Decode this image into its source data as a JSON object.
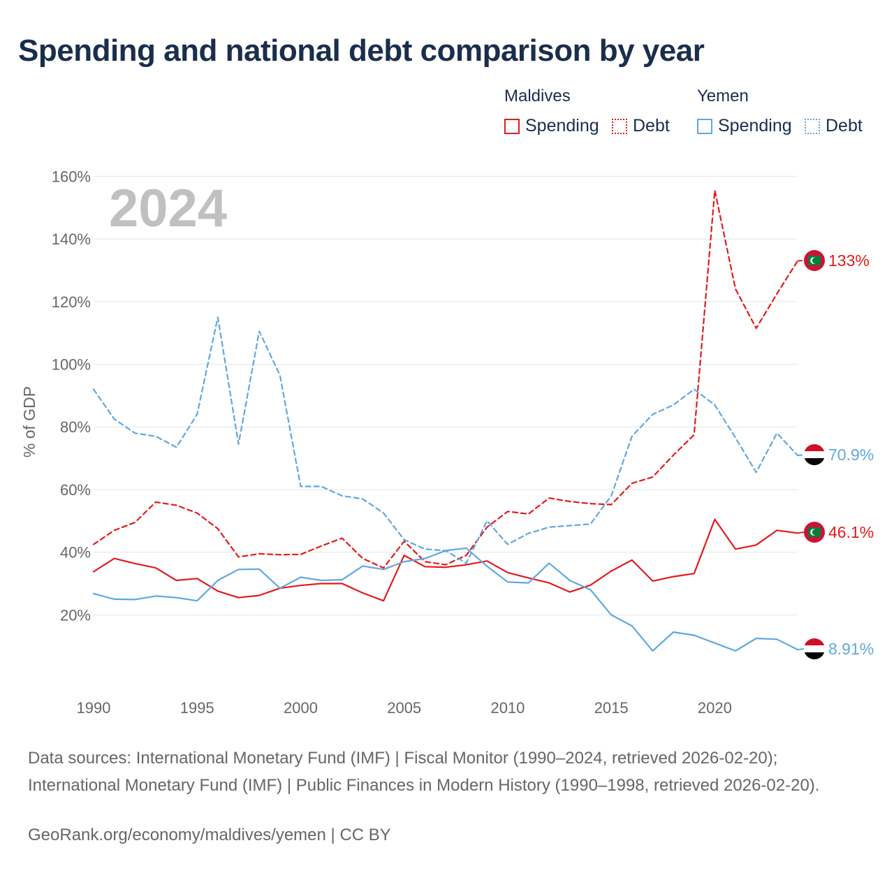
{
  "title": "Spending and national debt comparison by year",
  "legend": {
    "groups": [
      {
        "country": "Maldives",
        "color": "#e31a1c",
        "items": [
          {
            "label": "Spending",
            "style": "solid"
          },
          {
            "label": "Debt",
            "style": "dotted"
          }
        ]
      },
      {
        "country": "Yemen",
        "color": "#5fa8e0",
        "items": [
          {
            "label": "Spending",
            "style": "solid"
          },
          {
            "label": "Debt",
            "style": "dotted"
          }
        ]
      }
    ]
  },
  "chart_data": {
    "type": "line",
    "ylabel": "% of GDP",
    "ylim": [
      -4,
      165
    ],
    "xlim": [
      1990,
      2024
    ],
    "yticks": [
      20,
      40,
      60,
      80,
      100,
      120,
      140,
      160
    ],
    "ytick_labels": [
      "20%",
      "40%",
      "60%",
      "80%",
      "100%",
      "120%",
      "140%",
      "160%"
    ],
    "xticks": [
      1990,
      1995,
      2000,
      2005,
      2010,
      2015,
      2020
    ],
    "xtick_labels": [
      "1990",
      "1995",
      "2000",
      "2005",
      "2010",
      "2015",
      "2020"
    ],
    "year_label": "2024",
    "grid": true,
    "x": [
      1990,
      1991,
      1992,
      1993,
      1994,
      1995,
      1996,
      1997,
      1998,
      1999,
      2000,
      2001,
      2002,
      2003,
      2004,
      2005,
      2006,
      2007,
      2008,
      2009,
      2010,
      2011,
      2012,
      2013,
      2014,
      2015,
      2016,
      2017,
      2018,
      2019,
      2020,
      2021,
      2022,
      2023,
      2024
    ],
    "series": [
      {
        "name": "Maldives Spending",
        "country": "Maldives",
        "color": "#e31a1c",
        "dash": "",
        "end_label": "46.1%",
        "values": [
          33.8,
          38,
          36.4,
          35,
          31,
          31.6,
          27.6,
          25.5,
          26.2,
          28.5,
          29.4,
          30,
          30,
          27,
          24.5,
          39,
          35.4,
          35.2,
          36,
          37.2,
          33.5,
          31.8,
          30.2,
          27.3,
          29.5,
          34,
          37.5,
          30.8,
          32.2,
          33.2,
          50.5,
          41,
          42.3,
          47,
          46.1
        ]
      },
      {
        "name": "Maldives Debt",
        "country": "Maldives",
        "color": "#e31a1c",
        "dash": "7,5",
        "end_label": "133%",
        "values": [
          42.5,
          47,
          49.5,
          56,
          55,
          52.5,
          47.5,
          38.5,
          39.5,
          39.2,
          39.3,
          42,
          44.5,
          38,
          35,
          43.5,
          37,
          36,
          39,
          48,
          53,
          52.2,
          57.3,
          56.2,
          55.5,
          55.2,
          62,
          64,
          71,
          77.5,
          155.5,
          124,
          111.5,
          122.5,
          133
        ]
      },
      {
        "name": "Yemen Spending",
        "country": "Yemen",
        "color": "#5fa8e0",
        "dash": "",
        "end_label": "8.91%",
        "values": [
          26.8,
          25,
          24.9,
          26,
          25.5,
          24.5,
          31,
          34.5,
          34.6,
          28.5,
          32,
          31,
          31.2,
          35.6,
          34.5,
          37,
          38,
          40.5,
          41.3,
          35.5,
          30.5,
          30.2,
          36.5,
          31,
          28,
          20,
          16.5,
          8.5,
          14.5,
          13.5,
          11,
          8.5,
          12.5,
          12.2,
          8.91
        ]
      },
      {
        "name": "Yemen Debt",
        "country": "Yemen",
        "color": "#5fa8e0",
        "dash": "7,5",
        "end_label": "70.9%",
        "values": [
          92,
          82.5,
          78,
          77,
          73.5,
          84,
          115,
          74.5,
          110.5,
          96.5,
          61,
          61,
          58,
          57,
          52.5,
          44,
          41,
          40.5,
          36.5,
          50,
          42.5,
          46,
          48,
          48.5,
          49,
          58,
          77,
          84,
          87,
          92,
          87,
          76.5,
          65.5,
          78,
          70.9
        ]
      }
    ]
  },
  "source_text": "Data sources: International Monetary Fund (IMF) | Fiscal Monitor (1990–2024, retrieved 2026-02-20); International Monetary Fund (IMF) | Public Finances in Modern History (1990–1998, retrieved 2026-02-20).",
  "credit_text": "GeoRank.org/economy/maldives/yemen | CC BY"
}
